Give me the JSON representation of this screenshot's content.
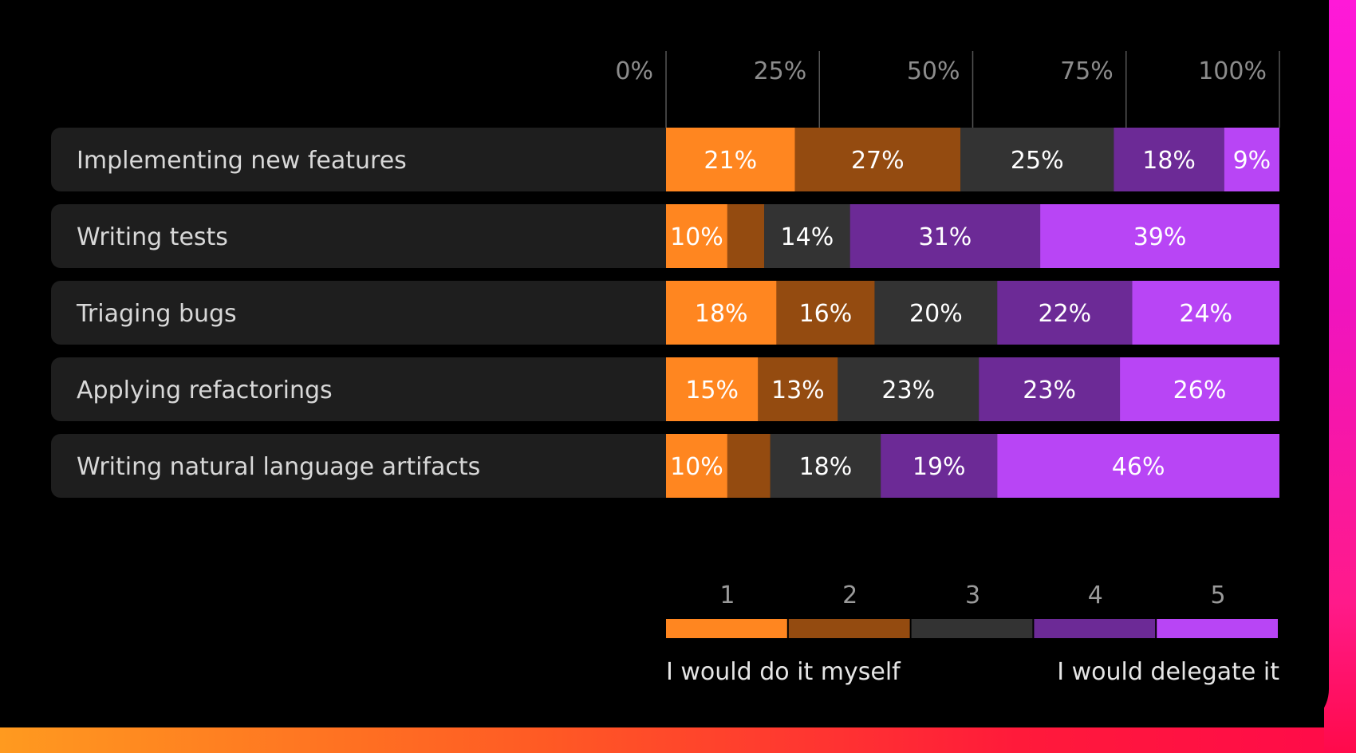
{
  "chart_data": {
    "type": "bar",
    "orientation": "horizontal",
    "stacked": true,
    "percent": true,
    "xlim": [
      0,
      100
    ],
    "x_ticks": [
      "0%",
      "25%",
      "50%",
      "75%",
      "100%"
    ],
    "categories": [
      "Implementing new features",
      "Writing tests",
      "Triaging bugs",
      "Applying refactorings",
      "Writing natural language artifacts"
    ],
    "series": [
      {
        "name": "1",
        "color": "#ff8620",
        "values": [
          21,
          10,
          18,
          15,
          10
        ]
      },
      {
        "name": "2",
        "color": "#944b10",
        "values": [
          27,
          6,
          16,
          13,
          7
        ]
      },
      {
        "name": "3",
        "color": "#333333",
        "values": [
          25,
          14,
          20,
          23,
          18
        ]
      },
      {
        "name": "4",
        "color": "#6c2a96",
        "values": [
          18,
          31,
          22,
          23,
          19
        ]
      },
      {
        "name": "5",
        "color": "#b845f5",
        "values": [
          9,
          39,
          24,
          26,
          46
        ]
      }
    ],
    "data_labels": [
      [
        "21%",
        "27%",
        "25%",
        "18%",
        "9%"
      ],
      [
        "10%",
        "",
        "14%",
        "31%",
        "39%"
      ],
      [
        "18%",
        "16%",
        "20%",
        "22%",
        "24%"
      ],
      [
        "15%",
        "13%",
        "23%",
        "23%",
        "26%"
      ],
      [
        "10%",
        "",
        "18%",
        "19%",
        "46%"
      ]
    ],
    "legend": {
      "placement": "bottom-right",
      "items": [
        "1",
        "2",
        "3",
        "4",
        "5"
      ],
      "low_label": "I would do it myself",
      "high_label": "I would delegate it"
    },
    "grid": true
  }
}
